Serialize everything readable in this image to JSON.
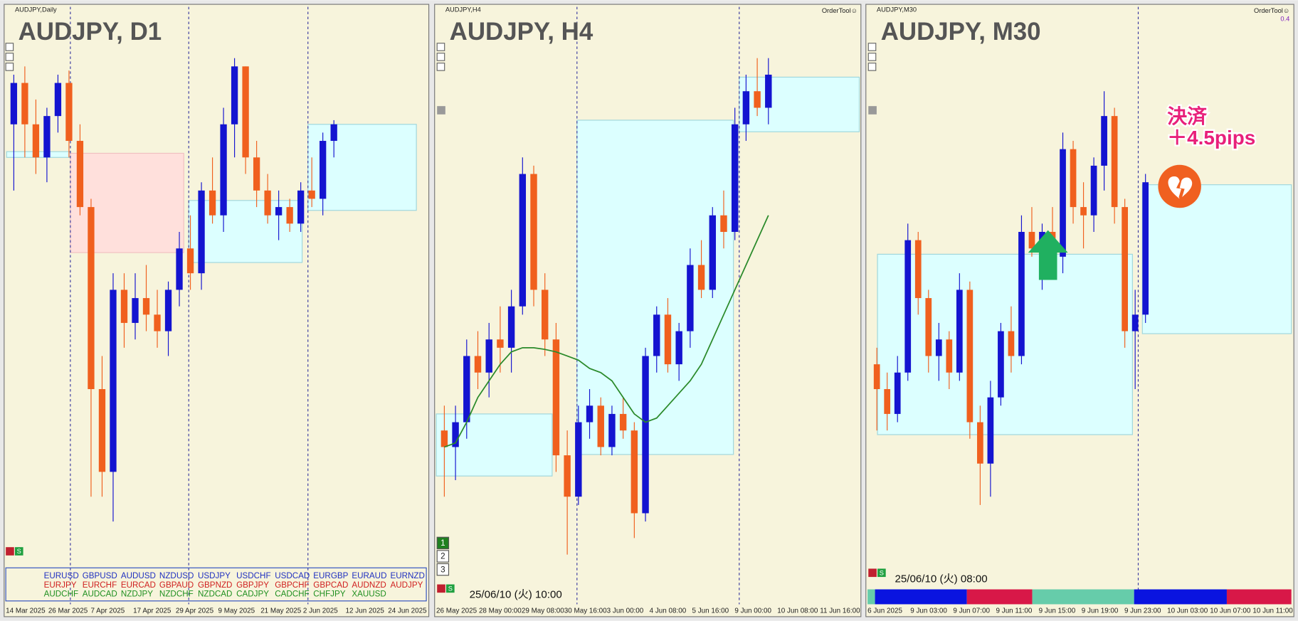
{
  "chart_data": [
    {
      "type": "candlestick",
      "header": "AUDJPY,Daily",
      "title": "AUDJPY, D1",
      "xtick_labels": [
        "14 Mar 2025",
        "26 Mar 2025",
        "7 Apr 2025",
        "17 Apr 2025",
        "29 Apr 2025",
        "9 May 2025",
        "21 May 2025",
        "2 Jun 2025",
        "12 Jun 2025",
        "24 Jun 2025"
      ],
      "ylim": [
        20,
        720
      ],
      "up_color": "#1414d0",
      "down_color": "#f0601e",
      "candles": [
        [
          600,
          660,
          520,
          650
        ],
        [
          650,
          670,
          560,
          600
        ],
        [
          600,
          630,
          540,
          560
        ],
        [
          560,
          620,
          530,
          610
        ],
        [
          610,
          660,
          590,
          650
        ],
        [
          650,
          665,
          560,
          580
        ],
        [
          580,
          600,
          490,
          500
        ],
        [
          500,
          510,
          150,
          280
        ],
        [
          280,
          320,
          150,
          180
        ],
        [
          180,
          420,
          120,
          400
        ],
        [
          400,
          420,
          330,
          360
        ],
        [
          360,
          420,
          340,
          390
        ],
        [
          390,
          430,
          350,
          370
        ],
        [
          370,
          400,
          330,
          350
        ],
        [
          350,
          410,
          320,
          400
        ],
        [
          400,
          470,
          380,
          450
        ],
        [
          450,
          490,
          400,
          420
        ],
        [
          420,
          530,
          400,
          520
        ],
        [
          520,
          560,
          480,
          490
        ],
        [
          490,
          620,
          470,
          600
        ],
        [
          600,
          680,
          560,
          670
        ],
        [
          670,
          670,
          540,
          560
        ],
        [
          560,
          580,
          500,
          520
        ],
        [
          520,
          540,
          480,
          490
        ],
        [
          490,
          520,
          460,
          500
        ],
        [
          500,
          510,
          470,
          480
        ],
        [
          480,
          530,
          470,
          520
        ],
        [
          520,
          560,
          500,
          510
        ],
        [
          510,
          590,
          490,
          580
        ],
        [
          580,
          605,
          560,
          600
        ]
      ]
    },
    {
      "type": "candlestick",
      "header": "AUDJPY,H4",
      "title": "AUDJPY, H4",
      "xtick_labels": [
        "26 May 2025",
        "28 May 00:00",
        "29 May 08:00",
        "30 May 16:00",
        "3 Jun 00:00",
        "4 Jun 08:00",
        "5 Jun 16:00",
        "9 Jun 00:00",
        "10 Jun 08:00",
        "11 Jun 16:00"
      ],
      "ylim": [
        20,
        720
      ],
      "up_color": "#1414d0",
      "down_color": "#f0601e",
      "ma_color": "#2a8a2a",
      "candles": [
        [
          230,
          260,
          150,
          210
        ],
        [
          210,
          260,
          170,
          240
        ],
        [
          240,
          340,
          220,
          320
        ],
        [
          320,
          350,
          280,
          300
        ],
        [
          300,
          360,
          270,
          340
        ],
        [
          340,
          380,
          300,
          330
        ],
        [
          330,
          400,
          300,
          380
        ],
        [
          380,
          560,
          370,
          540
        ],
        [
          540,
          550,
          380,
          400
        ],
        [
          400,
          420,
          320,
          340
        ],
        [
          340,
          360,
          180,
          200
        ],
        [
          200,
          230,
          80,
          150
        ],
        [
          150,
          260,
          140,
          240
        ],
        [
          240,
          280,
          220,
          260
        ],
        [
          260,
          270,
          200,
          210
        ],
        [
          210,
          260,
          200,
          250
        ],
        [
          250,
          270,
          220,
          230
        ],
        [
          230,
          240,
          100,
          130
        ],
        [
          130,
          330,
          120,
          320
        ],
        [
          320,
          380,
          300,
          370
        ],
        [
          370,
          390,
          300,
          310
        ],
        [
          310,
          360,
          290,
          350
        ],
        [
          350,
          450,
          330,
          430
        ],
        [
          430,
          460,
          390,
          400
        ],
        [
          400,
          500,
          390,
          490
        ],
        [
          490,
          520,
          450,
          470
        ],
        [
          470,
          620,
          460,
          600
        ],
        [
          600,
          660,
          580,
          640
        ],
        [
          640,
          680,
          610,
          620
        ],
        [
          620,
          680,
          600,
          660
        ]
      ],
      "ma": [
        210,
        215,
        240,
        270,
        290,
        310,
        325,
        330,
        330,
        328,
        325,
        320,
        315,
        305,
        300,
        290,
        270,
        250,
        240,
        245,
        260,
        275,
        290,
        310,
        340,
        370,
        400,
        430,
        460,
        490
      ]
    },
    {
      "type": "candlestick",
      "header": "AUDJPY,M30",
      "title": "AUDJPY, M30",
      "xtick_labels": [
        "6 Jun 2025",
        "9 Jun 03:00",
        "9 Jun 07:00",
        "9 Jun 11:00",
        "9 Jun 15:00",
        "9 Jun 19:00",
        "9 Jun 23:00",
        "10 Jun 03:00",
        "10 Jun 07:00",
        "10 Jun 11:00"
      ],
      "ylim": [
        20,
        720
      ],
      "up_color": "#1414d0",
      "down_color": "#f0601e",
      "candles": [
        [
          310,
          330,
          230,
          280
        ],
        [
          280,
          300,
          230,
          250
        ],
        [
          250,
          320,
          240,
          300
        ],
        [
          300,
          480,
          290,
          460
        ],
        [
          460,
          470,
          370,
          390
        ],
        [
          390,
          400,
          300,
          320
        ],
        [
          320,
          360,
          290,
          340
        ],
        [
          340,
          350,
          280,
          300
        ],
        [
          300,
          420,
          290,
          400
        ],
        [
          400,
          410,
          220,
          240
        ],
        [
          240,
          260,
          140,
          190
        ],
        [
          190,
          290,
          150,
          270
        ],
        [
          270,
          360,
          260,
          350
        ],
        [
          350,
          380,
          300,
          320
        ],
        [
          320,
          490,
          310,
          470
        ],
        [
          470,
          500,
          440,
          450
        ],
        [
          450,
          480,
          400,
          470
        ],
        [
          470,
          500,
          420,
          440
        ],
        [
          440,
          590,
          420,
          570
        ],
        [
          570,
          580,
          480,
          500
        ],
        [
          500,
          530,
          450,
          490
        ],
        [
          490,
          560,
          470,
          550
        ],
        [
          550,
          640,
          520,
          610
        ],
        [
          610,
          620,
          480,
          500
        ],
        [
          500,
          510,
          330,
          350
        ],
        [
          350,
          400,
          280,
          370
        ],
        [
          370,
          540,
          360,
          530
        ]
      ]
    }
  ],
  "ui": {
    "symbols": [
      [
        "EURUSD",
        "GBPUSD",
        "AUDUSD",
        "NZDUSD",
        "USDJPY",
        "USDCHF",
        "USDCAD",
        "EURGBP",
        "EURAUD",
        "EURNZD"
      ],
      [
        "EURJPY",
        "EURCHF",
        "EURCAD",
        "GBPAUD",
        "GBPNZD",
        "GBPJPY",
        "GBPCHF",
        "GBPCAD",
        "AUDNZD",
        "AUDJPY"
      ],
      [
        "AUDCHF",
        "AUDCAD",
        "NZDJPY",
        "NZDCHF",
        "NZDCAD",
        "CADJPY",
        "CADCHF",
        "CHFJPY",
        "XAUUSD"
      ]
    ],
    "row_colors": [
      "#2030c0",
      "#d02020",
      "#209020"
    ],
    "order_tool": [
      "OrderTool☺",
      "OrderTool☺"
    ],
    "zoom": "0.4",
    "annotation": [
      "決済",
      "＋4.5pips"
    ],
    "timestamps": [
      "25/06/10 (火) 10:00",
      "25/06/10 (火) 08:00"
    ],
    "buttons": [
      "1",
      "2",
      "3"
    ],
    "s_button": "S"
  }
}
